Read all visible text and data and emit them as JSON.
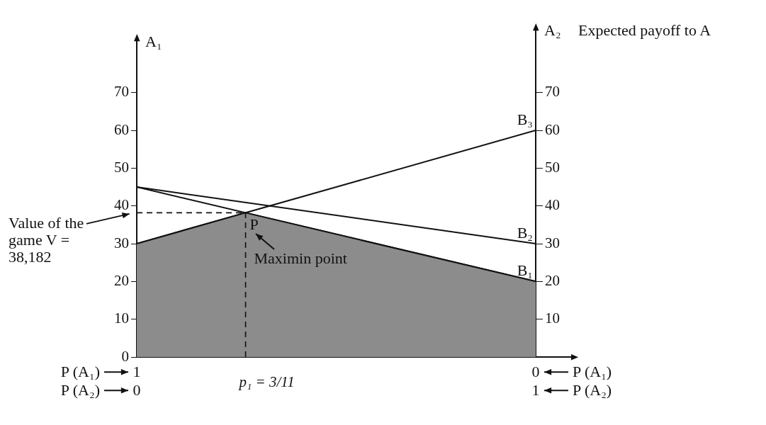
{
  "chart_data": {
    "type": "line",
    "title": "Expected payoff to A",
    "ylabel": "A₁",
    "y2label": "A₂",
    "xlabel": "P (A₂)",
    "x2label": "P (A₁)",
    "xlim": [
      0,
      1
    ],
    "xticks": [
      0,
      1
    ],
    "x2lim": [
      1,
      0
    ],
    "x2ticks": [
      1,
      0
    ],
    "ylim": [
      0,
      78
    ],
    "yticks": [
      0,
      10,
      20,
      30,
      40,
      50,
      60,
      70
    ],
    "y2lim": [
      0,
      78
    ],
    "y2ticks": [
      10,
      20,
      30,
      40,
      50,
      60,
      70
    ],
    "grid": false,
    "series": [
      {
        "type": "area",
        "color": "#8c8c8c",
        "x": [
          0,
          0.272727,
          1
        ],
        "values": [
          30,
          38.182,
          20
        ]
      },
      {
        "name": "B₁",
        "color": "#111111",
        "x": [
          0,
          1
        ],
        "values": [
          45,
          20
        ]
      },
      {
        "name": "B₂",
        "color": "#111111",
        "x": [
          0,
          1
        ],
        "values": [
          45,
          30
        ]
      },
      {
        "name": "B₃",
        "color": "#111111",
        "x": [
          0,
          1
        ],
        "values": [
          30,
          60
        ]
      }
    ],
    "ref_lines": [
      {
        "axis": "x",
        "value": 0.272727,
        "line_style": "dashed",
        "color": "#111111"
      },
      {
        "axis": "y",
        "value": 38.182,
        "line_style": "dashed",
        "color": "#111111"
      }
    ],
    "annotations": [
      {
        "text": "P",
        "x": 0.272727,
        "y": 38.182
      },
      "Maximin point",
      "Value of the game V = 38,182",
      "p₁ = 3/11"
    ]
  }
}
